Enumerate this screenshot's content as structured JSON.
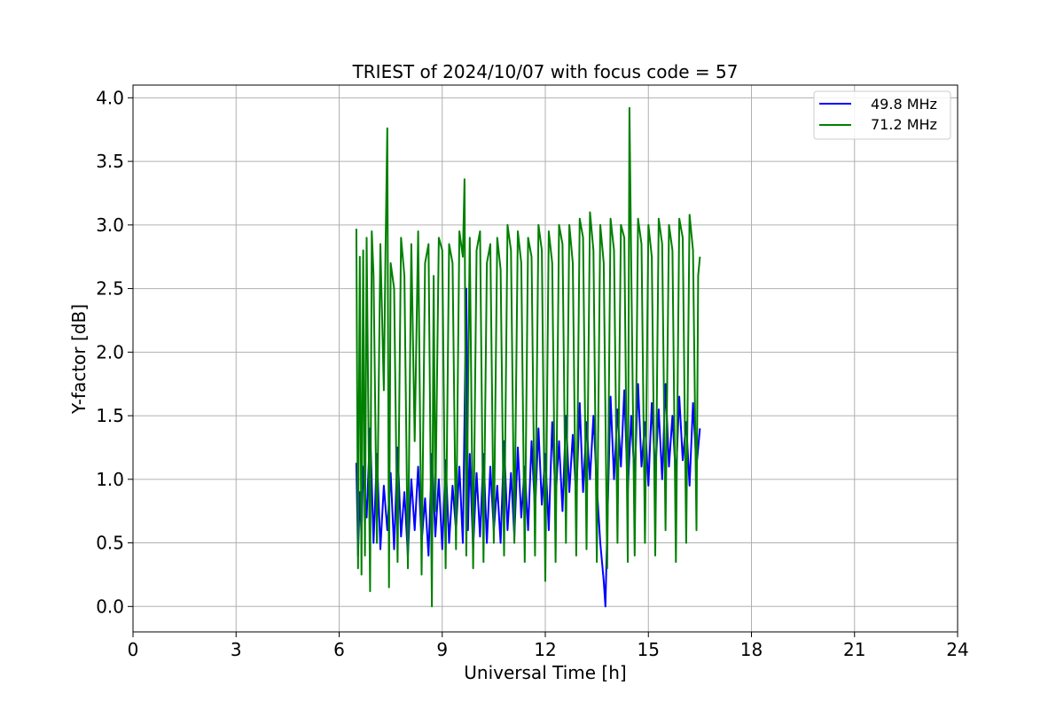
{
  "chart_data": {
    "type": "line",
    "title": "TRIEST of 2024/10/07 with focus code = 57",
    "xlabel": "Universal Time [h]",
    "ylabel": "Y-factor [dB]",
    "xlim": [
      0,
      24
    ],
    "ylim": [
      -0.2,
      4.1
    ],
    "xticks": [
      0,
      3,
      6,
      9,
      12,
      15,
      18,
      21,
      24
    ],
    "yticks": [
      0.0,
      0.5,
      1.0,
      1.5,
      2.0,
      2.5,
      3.0,
      3.5,
      4.0
    ],
    "xtick_labels": [
      "0",
      "3",
      "6",
      "9",
      "12",
      "15",
      "18",
      "21",
      "24"
    ],
    "ytick_labels": [
      "0.0",
      "0.5",
      "1.0",
      "1.5",
      "2.0",
      "2.5",
      "3.0",
      "3.5",
      "4.0"
    ],
    "grid": true,
    "legend_position": "top-right",
    "series": [
      {
        "name": "49.8 MHz",
        "color": "#0000ff",
        "x": [
          6.5,
          6.55,
          6.6,
          6.65,
          6.7,
          6.8,
          6.9,
          7.0,
          7.1,
          7.2,
          7.3,
          7.4,
          7.5,
          7.6,
          7.7,
          7.8,
          7.9,
          8.0,
          8.1,
          8.2,
          8.3,
          8.4,
          8.5,
          8.6,
          8.7,
          8.8,
          8.9,
          9.0,
          9.1,
          9.2,
          9.3,
          9.4,
          9.5,
          9.6,
          9.7,
          9.75,
          9.8,
          9.9,
          10.0,
          10.1,
          10.2,
          10.3,
          10.4,
          10.5,
          10.6,
          10.7,
          10.8,
          10.9,
          11.0,
          11.1,
          11.2,
          11.3,
          11.4,
          11.5,
          11.6,
          11.7,
          11.8,
          11.9,
          12.0,
          12.1,
          12.2,
          12.3,
          12.4,
          12.5,
          12.6,
          12.7,
          12.8,
          12.9,
          13.0,
          13.1,
          13.2,
          13.3,
          13.4,
          13.5,
          13.6,
          13.7,
          13.75,
          13.8,
          13.9,
          14.0,
          14.1,
          14.2,
          14.3,
          14.4,
          14.5,
          14.6,
          14.7,
          14.8,
          14.9,
          15.0,
          15.1,
          15.2,
          15.3,
          15.4,
          15.5,
          15.6,
          15.7,
          15.8,
          15.9,
          16.0,
          16.1,
          16.2,
          16.3,
          16.4,
          16.5
        ],
        "y": [
          1.13,
          0.4,
          0.9,
          0.55,
          1.1,
          0.7,
          1.4,
          0.5,
          1.2,
          0.45,
          0.95,
          0.6,
          1.05,
          0.45,
          1.25,
          0.55,
          0.9,
          0.4,
          1.0,
          0.6,
          1.1,
          0.5,
          0.85,
          0.4,
          1.2,
          0.55,
          1.0,
          0.45,
          1.15,
          0.5,
          0.95,
          0.6,
          1.1,
          0.5,
          2.5,
          0.6,
          1.2,
          0.45,
          1.05,
          0.55,
          1.2,
          0.5,
          1.1,
          0.6,
          0.95,
          0.5,
          1.3,
          0.6,
          1.05,
          0.55,
          1.25,
          0.7,
          1.1,
          0.6,
          1.3,
          0.75,
          1.4,
          0.8,
          1.2,
          0.6,
          1.45,
          0.85,
          1.3,
          0.75,
          1.5,
          0.9,
          1.35,
          0.85,
          1.6,
          0.9,
          1.45,
          1.0,
          1.5,
          0.95,
          0.5,
          0.2,
          0.0,
          0.6,
          1.65,
          1.0,
          1.55,
          1.1,
          1.7,
          0.9,
          1.5,
          1.0,
          1.75,
          1.1,
          1.45,
          0.95,
          1.6,
          1.05,
          1.55,
          1.0,
          1.75,
          1.1,
          1.5,
          1.0,
          1.65,
          1.15,
          1.45,
          0.95,
          1.6,
          1.1,
          1.4
        ]
      },
      {
        "name": "71.2 MHz",
        "color": "#008000",
        "x": [
          6.5,
          6.55,
          6.6,
          6.65,
          6.7,
          6.75,
          6.8,
          6.9,
          6.95,
          7.0,
          7.1,
          7.2,
          7.3,
          7.35,
          7.4,
          7.45,
          7.5,
          7.6,
          7.7,
          7.8,
          7.9,
          8.0,
          8.1,
          8.2,
          8.3,
          8.4,
          8.5,
          8.6,
          8.7,
          8.75,
          8.8,
          8.9,
          9.0,
          9.1,
          9.2,
          9.3,
          9.4,
          9.5,
          9.6,
          9.65,
          9.7,
          9.8,
          9.9,
          10.0,
          10.1,
          10.2,
          10.3,
          10.4,
          10.5,
          10.6,
          10.7,
          10.8,
          10.9,
          11.0,
          11.1,
          11.2,
          11.3,
          11.4,
          11.5,
          11.6,
          11.7,
          11.8,
          11.9,
          12.0,
          12.1,
          12.2,
          12.3,
          12.4,
          12.5,
          12.6,
          12.7,
          12.8,
          12.9,
          13.0,
          13.1,
          13.2,
          13.3,
          13.4,
          13.5,
          13.6,
          13.7,
          13.8,
          13.9,
          14.0,
          14.1,
          14.2,
          14.3,
          14.4,
          14.45,
          14.5,
          14.6,
          14.7,
          14.8,
          14.9,
          15.0,
          15.1,
          15.2,
          15.3,
          15.4,
          15.5,
          15.6,
          15.7,
          15.8,
          15.9,
          16.0,
          16.1,
          16.2,
          16.3,
          16.4,
          16.45,
          16.5
        ],
        "y": [
          2.97,
          0.3,
          2.75,
          0.25,
          2.8,
          0.4,
          2.9,
          0.12,
          2.95,
          2.6,
          0.5,
          2.85,
          1.7,
          2.8,
          3.76,
          0.15,
          2.7,
          2.5,
          0.35,
          2.9,
          2.6,
          0.3,
          2.85,
          1.3,
          2.95,
          0.25,
          2.7,
          2.85,
          0.0,
          2.6,
          0.75,
          2.9,
          2.8,
          0.3,
          2.85,
          2.7,
          0.45,
          2.95,
          2.75,
          3.36,
          0.4,
          2.9,
          0.3,
          2.8,
          2.95,
          0.35,
          2.7,
          2.85,
          0.5,
          2.9,
          2.65,
          0.4,
          3.0,
          2.8,
          0.5,
          2.95,
          2.7,
          0.35,
          2.9,
          2.75,
          0.4,
          3.0,
          2.8,
          0.2,
          2.95,
          2.7,
          0.35,
          3.0,
          2.85,
          0.5,
          3.0,
          2.7,
          0.4,
          3.05,
          2.9,
          0.45,
          3.1,
          2.8,
          0.35,
          3.0,
          2.7,
          0.3,
          3.05,
          2.8,
          0.5,
          3.0,
          2.9,
          0.35,
          3.92,
          2.7,
          0.4,
          3.05,
          2.85,
          0.5,
          3.0,
          2.75,
          0.4,
          3.05,
          2.85,
          0.6,
          3.0,
          2.8,
          0.35,
          3.05,
          2.9,
          0.5,
          3.08,
          2.8,
          0.6,
          2.6,
          2.75
        ]
      }
    ]
  }
}
